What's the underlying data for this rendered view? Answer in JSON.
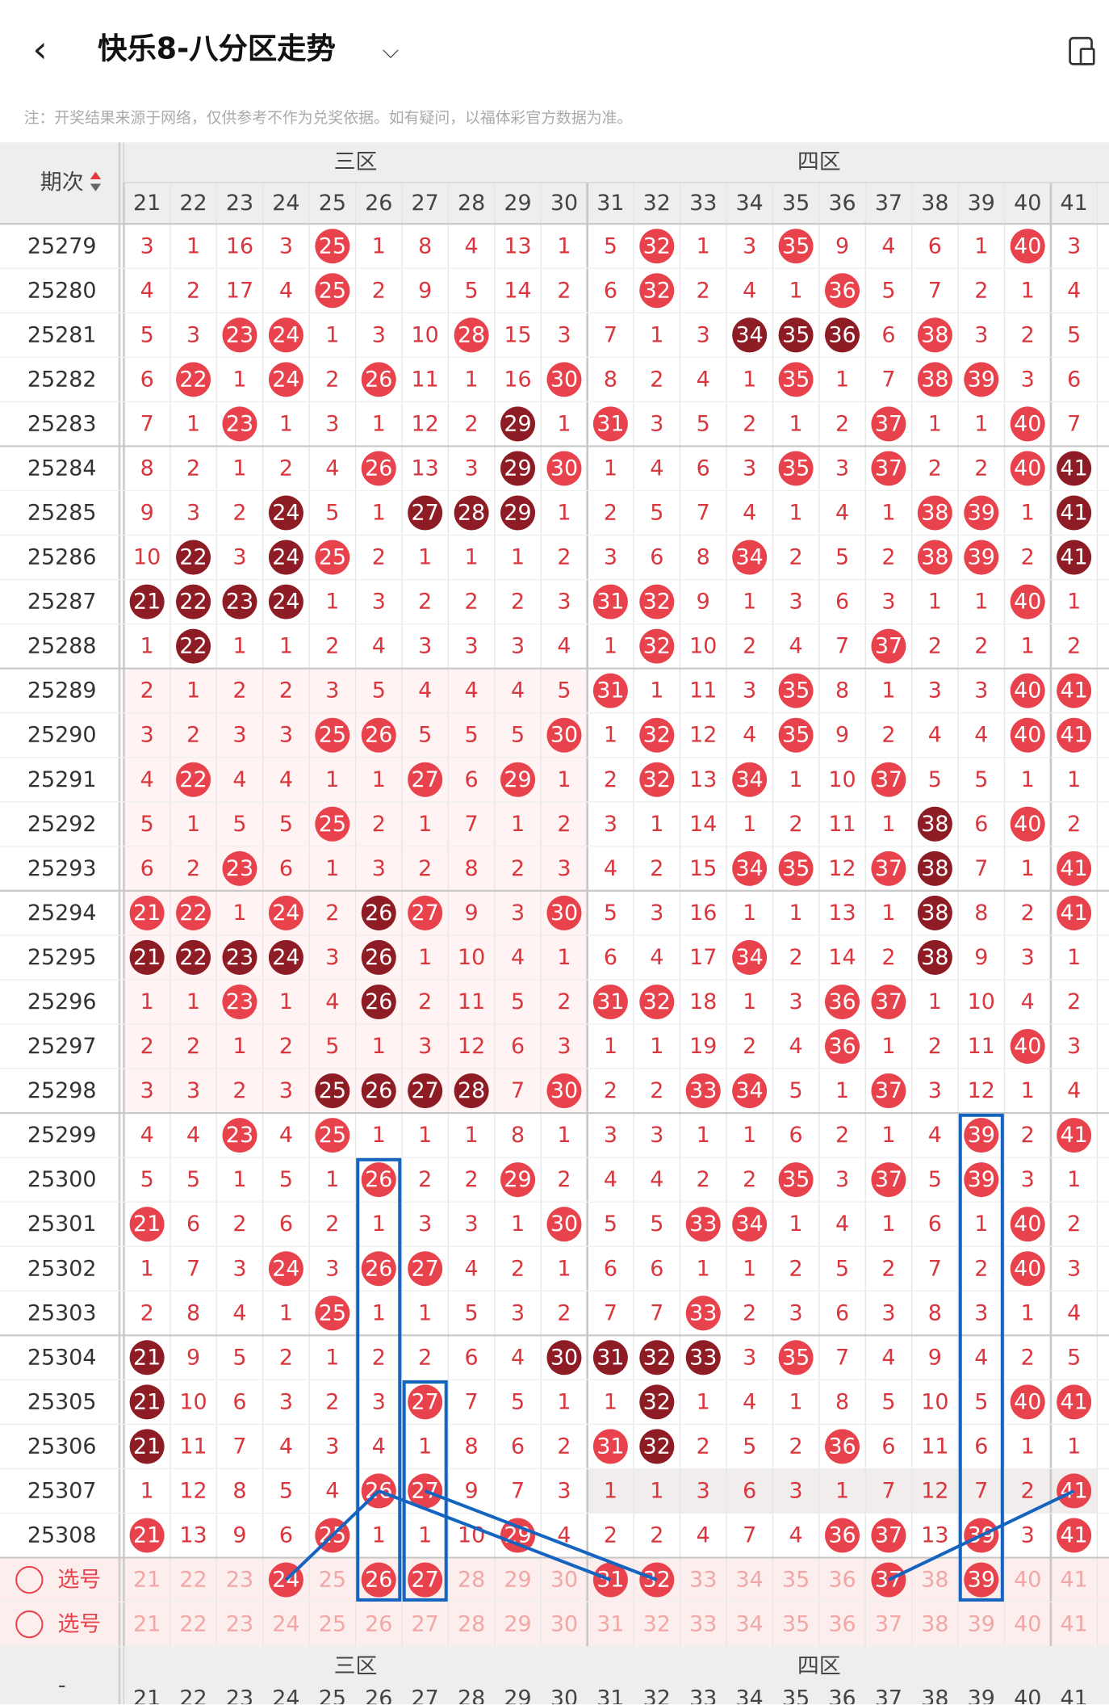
{
  "header": {
    "title": "快乐8-八分区走势",
    "back_icon": "chevron-left-icon",
    "dropdown_icon": "chevron-down-icon",
    "device_icon": "rotate-device-icon"
  },
  "note": "注：开奖结果来源于网络，仅供参考不作为兑奖依据。如有疑问，以福体彩官方数据为准。",
  "table": {
    "issue_header": "期次",
    "zones": [
      {
        "label": "三区",
        "start": 21
      },
      {
        "label": "四区",
        "start": 31
      }
    ],
    "numbers": [
      21,
      22,
      23,
      24,
      25,
      26,
      27,
      28,
      29,
      30,
      31,
      32,
      33,
      34,
      35,
      36,
      37,
      38,
      39,
      40,
      41
    ],
    "rows": [
      {
        "issue": "25279",
        "cells": [
          3,
          1,
          16,
          3,
          "H",
          1,
          8,
          4,
          13,
          1,
          5,
          "H",
          1,
          3,
          "H",
          9,
          4,
          6,
          1,
          "H",
          3
        ]
      },
      {
        "issue": "25280",
        "cells": [
          4,
          2,
          17,
          4,
          "H",
          2,
          9,
          5,
          14,
          2,
          6,
          "H",
          2,
          4,
          1,
          "H",
          5,
          7,
          2,
          1,
          4
        ]
      },
      {
        "issue": "25281",
        "cells": [
          5,
          3,
          "H",
          "H",
          1,
          3,
          10,
          "H",
          15,
          3,
          7,
          1,
          3,
          "D",
          "D",
          "D",
          6,
          "H",
          3,
          2,
          5
        ]
      },
      {
        "issue": "25282",
        "cells": [
          6,
          "H",
          1,
          "H",
          2,
          "H",
          11,
          1,
          16,
          "H",
          8,
          2,
          4,
          1,
          "H",
          1,
          7,
          "H",
          "H",
          3,
          6
        ]
      },
      {
        "issue": "25283",
        "cells": [
          7,
          1,
          "H",
          1,
          3,
          1,
          12,
          2,
          "D",
          1,
          "H",
          3,
          5,
          2,
          1,
          2,
          "H",
          1,
          1,
          "H",
          7
        ]
      },
      {
        "issue": "25284",
        "cells": [
          8,
          2,
          1,
          2,
          4,
          "H",
          13,
          3,
          "D",
          "H",
          1,
          4,
          6,
          3,
          "H",
          3,
          "H",
          2,
          2,
          "H",
          "D"
        ]
      },
      {
        "issue": "25285",
        "cells": [
          9,
          3,
          2,
          "D",
          5,
          1,
          "D",
          "D",
          "D",
          1,
          2,
          5,
          7,
          4,
          1,
          4,
          1,
          "H",
          "H",
          1,
          "D"
        ]
      },
      {
        "issue": "25286",
        "cells": [
          10,
          "D",
          3,
          "D",
          "H",
          2,
          1,
          1,
          1,
          2,
          3,
          6,
          8,
          "H",
          2,
          5,
          2,
          "H",
          "H",
          2,
          "D"
        ]
      },
      {
        "issue": "25287",
        "cells": [
          "D",
          "D",
          "D",
          "D",
          1,
          3,
          2,
          2,
          2,
          3,
          "H",
          "H",
          9,
          1,
          3,
          6,
          3,
          1,
          1,
          "H",
          1
        ]
      },
      {
        "issue": "25288",
        "cells": [
          1,
          "D",
          1,
          1,
          2,
          4,
          3,
          3,
          3,
          4,
          1,
          "H",
          10,
          2,
          4,
          7,
          "H",
          2,
          2,
          1,
          2
        ]
      },
      {
        "issue": "25289",
        "cells": [
          2,
          1,
          2,
          2,
          3,
          5,
          4,
          4,
          4,
          5,
          "H",
          1,
          11,
          3,
          "H",
          8,
          1,
          3,
          3,
          "H",
          "H"
        ]
      },
      {
        "issue": "25290",
        "cells": [
          3,
          2,
          3,
          3,
          "H",
          "H",
          5,
          5,
          5,
          "H",
          1,
          "H",
          12,
          4,
          "H",
          9,
          2,
          4,
          4,
          "H",
          "H"
        ]
      },
      {
        "issue": "25291",
        "cells": [
          4,
          "H",
          4,
          4,
          1,
          1,
          "H",
          6,
          "H",
          1,
          2,
          "H",
          13,
          "H",
          1,
          10,
          "H",
          5,
          5,
          1,
          1
        ]
      },
      {
        "issue": "25292",
        "cells": [
          5,
          1,
          5,
          5,
          "H",
          2,
          1,
          7,
          1,
          2,
          3,
          1,
          14,
          1,
          2,
          11,
          1,
          "D",
          6,
          "H",
          2
        ]
      },
      {
        "issue": "25293",
        "cells": [
          6,
          2,
          "H",
          6,
          1,
          3,
          2,
          8,
          2,
          3,
          4,
          2,
          15,
          "H",
          "H",
          12,
          "H",
          "D",
          7,
          1,
          "H"
        ]
      },
      {
        "issue": "25294",
        "cells": [
          "H",
          "H",
          1,
          "H",
          2,
          "D",
          "H",
          9,
          3,
          "H",
          5,
          3,
          16,
          1,
          1,
          13,
          1,
          "D",
          8,
          2,
          "H"
        ]
      },
      {
        "issue": "25295",
        "cells": [
          "D",
          "D",
          "D",
          "D",
          3,
          "D",
          1,
          10,
          4,
          1,
          6,
          4,
          17,
          "H",
          2,
          14,
          2,
          "D",
          9,
          3,
          1
        ]
      },
      {
        "issue": "25296",
        "cells": [
          1,
          1,
          "H",
          1,
          4,
          "D",
          2,
          11,
          5,
          2,
          "H",
          "H",
          18,
          1,
          3,
          "H",
          "H",
          1,
          10,
          4,
          2
        ]
      },
      {
        "issue": "25297",
        "cells": [
          2,
          2,
          1,
          2,
          5,
          1,
          3,
          12,
          6,
          3,
          1,
          1,
          19,
          2,
          4,
          "H",
          1,
          2,
          11,
          "H",
          3
        ]
      },
      {
        "issue": "25298",
        "cells": [
          3,
          3,
          2,
          3,
          "D",
          "D",
          "D",
          "D",
          7,
          "H",
          2,
          2,
          "H",
          "H",
          5,
          1,
          "H",
          3,
          12,
          1,
          4
        ]
      },
      {
        "issue": "25299",
        "cells": [
          4,
          4,
          "H",
          4,
          "H",
          1,
          1,
          1,
          8,
          1,
          3,
          3,
          1,
          1,
          6,
          2,
          1,
          4,
          "H",
          2,
          "H"
        ]
      },
      {
        "issue": "25300",
        "cells": [
          5,
          5,
          1,
          5,
          1,
          "H",
          2,
          2,
          "H",
          2,
          4,
          4,
          2,
          2,
          "H",
          3,
          "H",
          5,
          "H",
          3,
          1
        ]
      },
      {
        "issue": "25301",
        "cells": [
          "H",
          6,
          2,
          6,
          2,
          1,
          3,
          3,
          1,
          "H",
          5,
          5,
          "H",
          "H",
          1,
          4,
          1,
          6,
          1,
          "H",
          2
        ]
      },
      {
        "issue": "25302",
        "cells": [
          1,
          7,
          3,
          "H",
          3,
          "H",
          "H",
          4,
          2,
          1,
          6,
          6,
          1,
          1,
          2,
          5,
          2,
          7,
          2,
          "H",
          3
        ]
      },
      {
        "issue": "25303",
        "cells": [
          2,
          8,
          4,
          1,
          "H",
          1,
          1,
          5,
          3,
          2,
          7,
          7,
          "H",
          2,
          3,
          6,
          3,
          8,
          3,
          1,
          4
        ]
      },
      {
        "issue": "25304",
        "cells": [
          "D",
          9,
          5,
          2,
          1,
          2,
          2,
          6,
          4,
          "D",
          "D",
          "D",
          "D",
          3,
          "H",
          7,
          4,
          9,
          4,
          2,
          5
        ]
      },
      {
        "issue": "25305",
        "cells": [
          "D",
          10,
          6,
          3,
          2,
          3,
          "H",
          7,
          5,
          1,
          1,
          "D",
          1,
          4,
          1,
          8,
          5,
          10,
          5,
          "H",
          "H"
        ]
      },
      {
        "issue": "25306",
        "cells": [
          "D",
          11,
          7,
          4,
          3,
          4,
          1,
          8,
          6,
          2,
          "H",
          "D",
          2,
          5,
          2,
          "H",
          6,
          11,
          6,
          1,
          1
        ]
      },
      {
        "issue": "25307",
        "cells": [
          1,
          12,
          8,
          5,
          4,
          "H",
          "H",
          9,
          7,
          3,
          1,
          1,
          3,
          6,
          3,
          1,
          7,
          12,
          7,
          2,
          "H"
        ]
      },
      {
        "issue": "25308",
        "cells": [
          "H",
          13,
          9,
          6,
          "H",
          1,
          1,
          10,
          "H",
          4,
          2,
          2,
          4,
          7,
          4,
          "H",
          "H",
          13,
          "H",
          3,
          "H"
        ]
      }
    ],
    "select_rows": [
      {
        "label": "选号",
        "picked": [
          24,
          26,
          27,
          31,
          32,
          37,
          39
        ]
      },
      {
        "label": "选号",
        "picked": []
      }
    ],
    "colors": {
      "hot": "#e8424c",
      "dup": "#8e1c25",
      "miss": "#d9363e",
      "select": "#f0a7a5",
      "grid": "#e6e6e6",
      "header_bg": "#eeeeee",
      "band_alt": "#fde7e7",
      "highlight_box": "#1565c0"
    }
  }
}
